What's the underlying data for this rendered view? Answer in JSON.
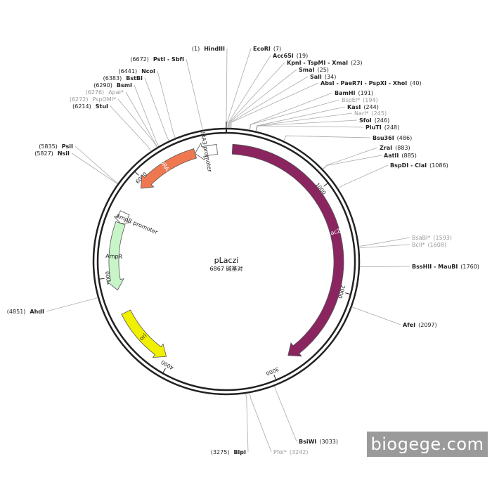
{
  "plasmid": {
    "name": "pLaczi",
    "size_label": "6867 碱基对",
    "length_bp": 6867
  },
  "scale_ticks": [
    {
      "bp": 1000,
      "label": "1000"
    },
    {
      "bp": 2000,
      "label": "2000"
    },
    {
      "bp": 3000,
      "label": "3000"
    },
    {
      "bp": 4000,
      "label": "4000"
    },
    {
      "bp": 5000,
      "label": "5000"
    },
    {
      "bp": 6000,
      "label": "6000"
    }
  ],
  "features": [
    {
      "name": "LacZi",
      "start": 60,
      "end": 2800,
      "direction": "cw",
      "color": "#8b2560",
      "text_color": "#ffffff"
    },
    {
      "name": "URA3",
      "start": 5925,
      "end": 6560,
      "direction": "ccw",
      "color": "#f07850",
      "text_color": "#ffffff"
    },
    {
      "name": "URA3 promoter",
      "start": 6560,
      "end": 6778,
      "direction": "ccw",
      "color": "#ffffff",
      "text_color": "#222222"
    },
    {
      "name": "AmpR",
      "start": 4870,
      "end": 5530,
      "direction": "ccw",
      "color": "#c8f5c8",
      "text_color": "#222222"
    },
    {
      "name": "AmpR promoter",
      "start": 5530,
      "end": 5640,
      "direction": "ccw",
      "color": "#ffffff",
      "text_color": "#222222"
    },
    {
      "name": "ori",
      "start": 4050,
      "end": 4640,
      "direction": "ccw",
      "color": "#f0f000",
      "text_color": "#222222"
    }
  ],
  "sites": [
    {
      "name": "HindIII",
      "pos_label": "(1)",
      "pos": 1,
      "dim": false
    },
    {
      "name": "EcoRI",
      "pos_label": "(7)",
      "pos": 7,
      "dim": false
    },
    {
      "name": "Acc65I",
      "pos_label": "(19)",
      "pos": 19,
      "dim": false
    },
    {
      "name": "KpnI - TspMI - XmaI",
      "pos_label": "(23)",
      "pos": 23,
      "dim": false
    },
    {
      "name": "SmaI",
      "pos_label": "(25)",
      "pos": 25,
      "dim": false
    },
    {
      "name": "SalI",
      "pos_label": "(34)",
      "pos": 34,
      "dim": false
    },
    {
      "name": "AbsI - PaeR7I - PspXI - XhoI",
      "pos_label": "(40)",
      "pos": 40,
      "dim": false
    },
    {
      "name": "BamHI",
      "pos_label": "(191)",
      "pos": 191,
      "dim": false
    },
    {
      "name": "BspEI*",
      "pos_label": "(194)",
      "pos": 194,
      "dim": true
    },
    {
      "name": "KasI",
      "pos_label": "(244)",
      "pos": 244,
      "dim": false
    },
    {
      "name": "NarI*",
      "pos_label": "(245)",
      "pos": 245,
      "dim": true
    },
    {
      "name": "SfoI",
      "pos_label": "(246)",
      "pos": 246,
      "dim": false
    },
    {
      "name": "PluTI",
      "pos_label": "(248)",
      "pos": 248,
      "dim": false
    },
    {
      "name": "Bsu36I",
      "pos_label": "(486)",
      "pos": 486,
      "dim": false
    },
    {
      "name": "ZraI",
      "pos_label": "(883)",
      "pos": 883,
      "dim": false
    },
    {
      "name": "AatII",
      "pos_label": "(885)",
      "pos": 885,
      "dim": false
    },
    {
      "name": "BspDI - ClaI",
      "pos_label": "(1086)",
      "pos": 1086,
      "dim": false
    },
    {
      "name": "BsaBI*",
      "pos_label": "(1593)",
      "pos": 1593,
      "dim": true
    },
    {
      "name": "BclI*",
      "pos_label": "(1608)",
      "pos": 1608,
      "dim": true
    },
    {
      "name": "BssHII - MauBI",
      "pos_label": "(1760)",
      "pos": 1760,
      "dim": false
    },
    {
      "name": "AfeI",
      "pos_label": "(2097)",
      "pos": 2097,
      "dim": false
    },
    {
      "name": "BsiWI",
      "pos_label": "(3033)",
      "pos": 3033,
      "dim": false
    },
    {
      "name": "PfoI*",
      "pos_label": "(3242)",
      "pos": 3242,
      "dim": true
    },
    {
      "name": "BlpI",
      "pos_label": "(3275)",
      "pos": 3275,
      "dim": false
    },
    {
      "name": "AhdI",
      "pos_label": "(4851)",
      "pos": 4851,
      "dim": false
    },
    {
      "name": "NsiI",
      "pos_label": "(5827)",
      "pos": 5827,
      "dim": false
    },
    {
      "name": "PsiI",
      "pos_label": "(5835)",
      "pos": 5835,
      "dim": false
    },
    {
      "name": "StuI",
      "pos_label": "(6214)",
      "pos": 6214,
      "dim": false
    },
    {
      "name": "PspOMI*",
      "pos_label": "(6272)",
      "pos": 6272,
      "dim": true
    },
    {
      "name": "ApaI*",
      "pos_label": "(6276)",
      "pos": 6276,
      "dim": true
    },
    {
      "name": "BsmI",
      "pos_label": "(6290)",
      "pos": 6290,
      "dim": false
    },
    {
      "name": "BstBI",
      "pos_label": "(6383)",
      "pos": 6383,
      "dim": false
    },
    {
      "name": "NcoI",
      "pos_label": "(6441)",
      "pos": 6441,
      "dim": false
    },
    {
      "name": "PstI - SbfI",
      "pos_label": "(6672)",
      "pos": 6672,
      "dim": false
    }
  ],
  "watermark": {
    "text": "biogege.com"
  }
}
